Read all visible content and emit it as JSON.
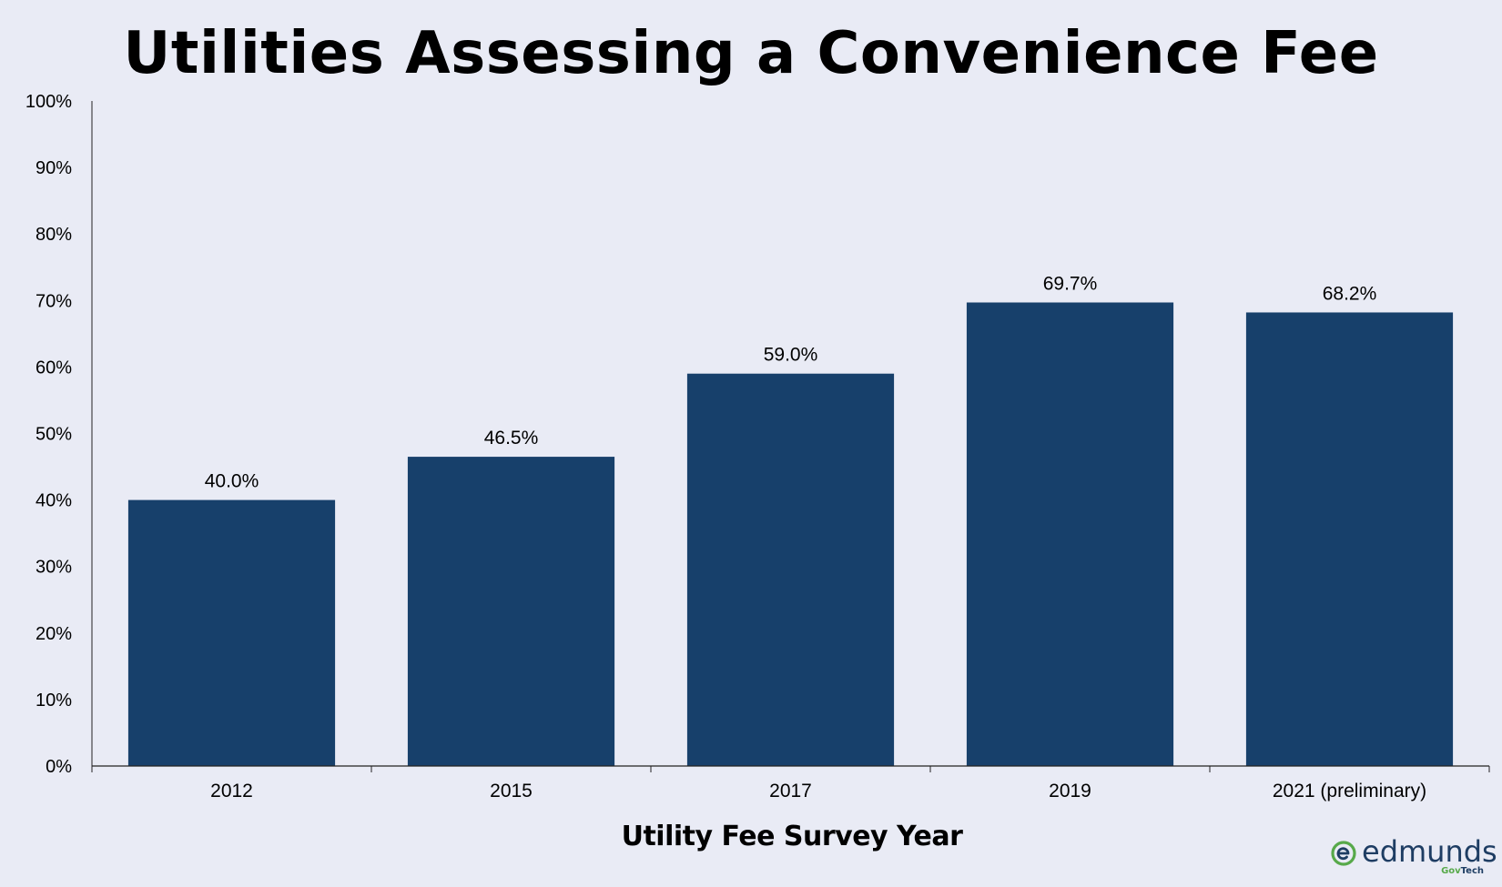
{
  "chart_data": {
    "type": "bar",
    "title": "Utilities Assessing a Convenience Fee",
    "xlabel": "Utility Fee Survey Year",
    "ylabel": "",
    "categories": [
      "2012",
      "2015",
      "2017",
      "2019",
      "2021 (preliminary)"
    ],
    "values": [
      40.0,
      46.5,
      59.0,
      69.7,
      68.2
    ],
    "data_labels": [
      "40.0%",
      "46.5%",
      "59.0%",
      "69.7%",
      "68.2%"
    ],
    "ylim": [
      0,
      100
    ],
    "yticks": [
      0,
      10,
      20,
      30,
      40,
      50,
      60,
      70,
      80,
      90,
      100
    ],
    "ytick_labels": [
      "0%",
      "10%",
      "20%",
      "30%",
      "40%",
      "50%",
      "60%",
      "70%",
      "80%",
      "90%",
      "100%"
    ],
    "grid": false,
    "legend": "none",
    "bar_color": "#17406b"
  },
  "logo": {
    "word": "edmunds",
    "sub_gov": "Gov",
    "sub_tech": "Tech",
    "green": "#57a94a",
    "navy": "#1e3d63"
  }
}
